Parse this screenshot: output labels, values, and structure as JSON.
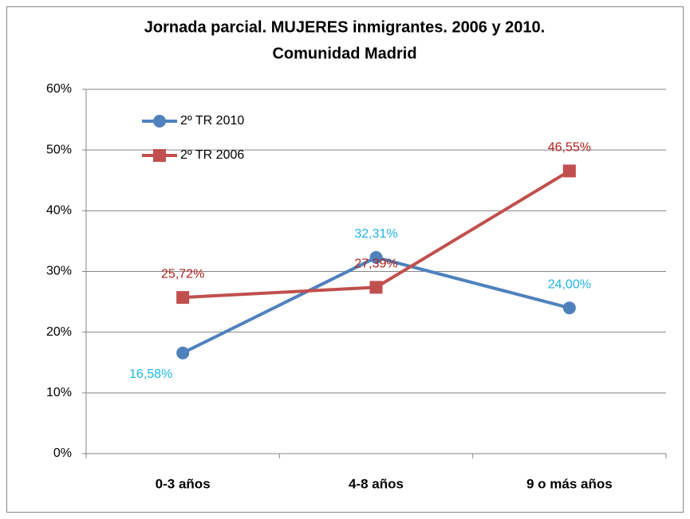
{
  "chart_data": {
    "type": "line",
    "title": "Jornada parcial. MUJERES inmigrantes. 2006 y 2010.",
    "subtitle": "Comunidad Madrid",
    "categories": [
      "0-3 años",
      "4-8 años",
      "9 o más años"
    ],
    "series": [
      {
        "name": "2º TR 2010",
        "color": "#4f81bd",
        "label_color": "#1fb4e6",
        "marker": "circle",
        "values": [
          16.58,
          32.31,
          24.0
        ],
        "value_labels": [
          "16,58%",
          "32,31%",
          "24,00%"
        ]
      },
      {
        "name": "2º TR 2006",
        "color": "#c0504d",
        "label_color": "#b0201d",
        "marker": "square",
        "values": [
          25.72,
          27.39,
          46.55
        ],
        "value_labels": [
          "25,72%",
          "27,39%",
          "46,55%"
        ]
      }
    ],
    "ylim": [
      0,
      60
    ],
    "yticks": [
      {
        "value": 0,
        "label": "0%"
      },
      {
        "value": 10,
        "label": "10%"
      },
      {
        "value": 20,
        "label": "20%"
      },
      {
        "value": 30,
        "label": "30%"
      },
      {
        "value": 40,
        "label": "40%"
      },
      {
        "value": 50,
        "label": "50%"
      },
      {
        "value": 60,
        "label": "60%"
      }
    ],
    "grid": true,
    "legend": "top-left"
  }
}
